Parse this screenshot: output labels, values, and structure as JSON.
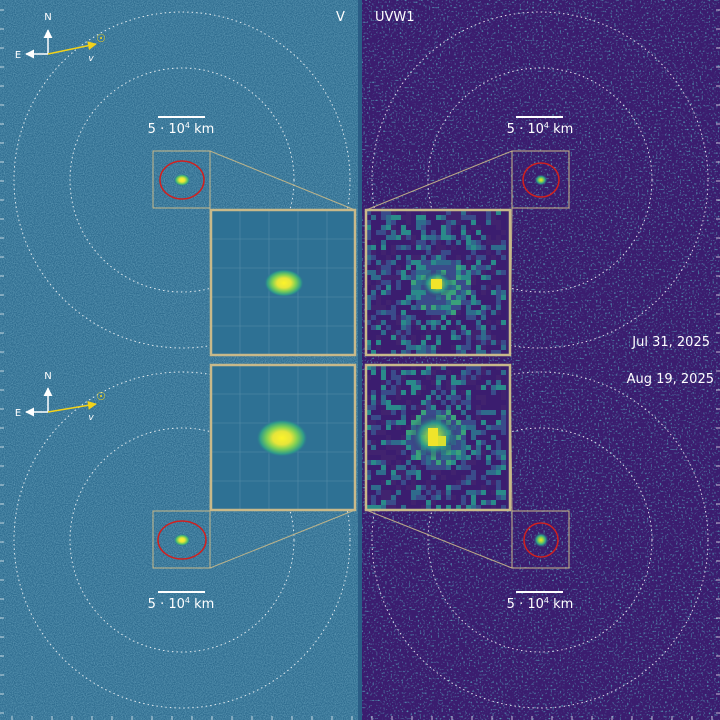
{
  "panels": {
    "left_filter": "V",
    "right_filter": "UVW1"
  },
  "dates": {
    "top": "Jul 31, 2025",
    "bottom": "Aug 19, 2025"
  },
  "scale_bar": {
    "prefix": "5 · 10",
    "exponent": "4",
    "unit": " km"
  },
  "compass": {
    "north": "N",
    "east": "E",
    "velocity": "v",
    "sun_symbol": "☉"
  },
  "colors": {
    "v_background": "#2e6c8f",
    "uvw1_background": "#3b1d6f",
    "divider": "#2a5d86",
    "inset_border": "#c8b98a",
    "aperture": "#d0201f",
    "velocity_arrow": "#f2d21b"
  }
}
